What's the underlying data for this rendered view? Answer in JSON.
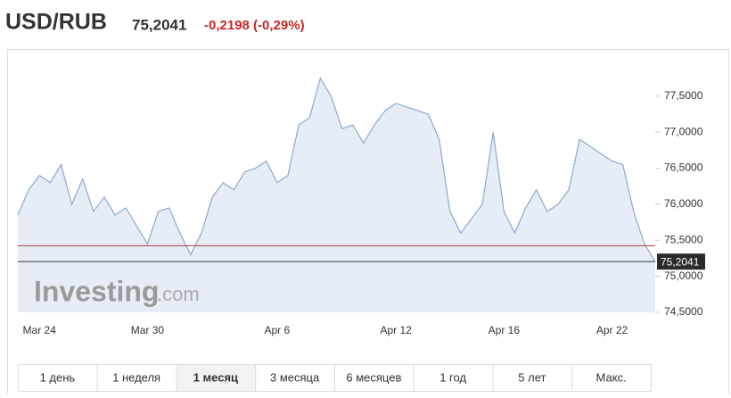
{
  "header": {
    "title": "USD/RUB",
    "price": "75,2041",
    "change": "-0,2198 (-0,29%)"
  },
  "chart_data": {
    "type": "area",
    "line_color": "#8fa8cc",
    "fill_color": "#e6edf6",
    "categories": [
      null,
      null,
      "Mar 24",
      null,
      null,
      null,
      null,
      null,
      null,
      null,
      null,
      null,
      "Mar 30",
      null,
      null,
      null,
      null,
      null,
      null,
      null,
      null,
      null,
      null,
      null,
      "Apr 6",
      null,
      null,
      null,
      null,
      null,
      null,
      null,
      null,
      null,
      null,
      "Apr 12",
      null,
      null,
      null,
      null,
      null,
      null,
      null,
      null,
      null,
      "Apr 16",
      null,
      null,
      null,
      null,
      null,
      null,
      null,
      null,
      null,
      "Apr 22",
      null,
      null,
      null,
      null
    ],
    "values": [
      75.85,
      76.2,
      76.4,
      76.3,
      76.55,
      76.0,
      76.35,
      75.9,
      76.1,
      75.85,
      75.95,
      75.7,
      75.45,
      75.9,
      75.95,
      75.6,
      75.3,
      75.6,
      76.1,
      76.3,
      76.2,
      76.45,
      76.5,
      76.6,
      76.3,
      76.4,
      77.1,
      77.2,
      77.75,
      77.5,
      77.05,
      77.1,
      76.85,
      77.1,
      77.3,
      77.4,
      77.35,
      77.3,
      77.25,
      76.9,
      75.9,
      75.6,
      75.8,
      76.0,
      77.0,
      75.9,
      75.6,
      75.95,
      76.2,
      75.9,
      76.0,
      76.2,
      76.9,
      76.8,
      76.7,
      76.6,
      76.55,
      75.9,
      75.45,
      75.2041
    ],
    "ylim": [
      74.5,
      78.03
    ],
    "yticks": [
      {
        "value": 74.5,
        "label": "74,5000"
      },
      {
        "value": 75,
        "label": "75,0000"
      },
      {
        "value": 75.5,
        "label": "75,5000"
      },
      {
        "value": 76,
        "label": "76,0000"
      },
      {
        "value": 76.5,
        "label": "76,5000"
      },
      {
        "value": 77,
        "label": "77,0000"
      },
      {
        "value": 77.5,
        "label": "77,5000"
      }
    ],
    "prev_close": 75.4239,
    "prev_close_color": "#b03a3a",
    "last": {
      "value": 75.2041,
      "label": "75,2041"
    },
    "watermark": {
      "brand": "Investing",
      "domain": ".com"
    }
  },
  "tabs": {
    "items": [
      "1 день",
      "1 неделя",
      "1 месяц",
      "3 месяца",
      "6 месяцев",
      "1 год",
      "5 лет",
      "Макс."
    ],
    "active": 2
  }
}
